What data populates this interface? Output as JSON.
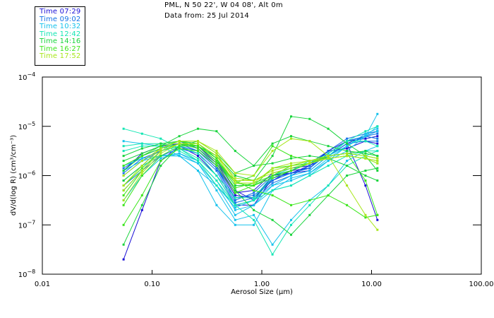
{
  "header": {
    "location": "PML, N 50 22', W 04 08', Alt 0m",
    "date_line": "Data from: 25 Jul 2014"
  },
  "legend": [
    {
      "label": "Time 07:29",
      "color": "#1a0fd6"
    },
    {
      "label": "Time 09:02",
      "color": "#1473e6"
    },
    {
      "label": "Time 10:32",
      "color": "#16c2ec"
    },
    {
      "label": "Time 12:42",
      "color": "#14e6b4"
    },
    {
      "label": "Time 14:16",
      "color": "#19d43c"
    },
    {
      "label": "Time 16:27",
      "color": "#3ce61c"
    },
    {
      "label": "Time 17:52",
      "color": "#a8e61a"
    }
  ],
  "chart_data": {
    "type": "line",
    "title": "PML, N 50 22', W 04 08', Alt 0m",
    "subtitle": "Data from: 25 Jul 2014",
    "xlabel": "Aerosol Size (µm)",
    "ylabel": "dV/d(log R) (cm³/cm⁻³)",
    "xscale": "log",
    "yscale": "log",
    "xlim": [
      0.01,
      100
    ],
    "ylim": [
      1e-08,
      0.0001
    ],
    "x_ticks": [
      {
        "value": 0.01,
        "label": "0.01"
      },
      {
        "value": 0.1,
        "label": "0.10"
      },
      {
        "value": 1,
        "label": "1.00"
      },
      {
        "value": 10,
        "label": "10.00"
      },
      {
        "value": 100,
        "label": "100.00"
      }
    ],
    "y_ticks": [
      {
        "value": 0.0001,
        "base": "10",
        "exp": "-4"
      },
      {
        "value": 1e-05,
        "base": "10",
        "exp": "-5"
      },
      {
        "value": 1e-06,
        "base": "10",
        "exp": "-6"
      },
      {
        "value": 1e-07,
        "base": "10",
        "exp": "-7"
      },
      {
        "value": 1e-08,
        "base": "10",
        "exp": "-8"
      }
    ],
    "legend_position": "top-left, outside",
    "x": [
      0.055,
      0.081,
      0.12,
      0.177,
      0.262,
      0.387,
      0.572,
      0.845,
      1.25,
      1.85,
      2.73,
      4.03,
      5.96,
      8.81,
      11.3
    ],
    "y_units_note": "series values are log10 of dV/d(log R)",
    "series": [
      {
        "name": "Time 07:29",
        "group": 0,
        "values": [
          -6.3,
          -5.9,
          -5.5,
          -5.35,
          -5.4,
          -5.7,
          -6.3,
          -6.5,
          -6.0,
          -5.95,
          -5.9,
          -5.6,
          -5.35,
          -5.2,
          -5.1
        ]
      },
      {
        "name": "Time 07:29",
        "group": 0,
        "values": [
          -6.1,
          -5.8,
          -5.45,
          -5.3,
          -5.45,
          -5.8,
          -6.4,
          -6.45,
          -6.1,
          -5.9,
          -5.85,
          -5.5,
          -5.3,
          -5.25,
          -5.2
        ]
      },
      {
        "name": "Time 07:29",
        "group": 0,
        "values": [
          -7.7,
          -6.7,
          -5.7,
          -5.4,
          -5.6,
          -6.0,
          -6.6,
          -6.6,
          -6.05,
          -5.95,
          -5.8,
          -5.6,
          -5.35,
          -6.2,
          -6.9
        ]
      },
      {
        "name": "Time 07:29",
        "group": 0,
        "values": [
          -5.9,
          -5.55,
          -5.4,
          -5.35,
          -5.4,
          -5.75,
          -6.35,
          -6.3,
          -5.95,
          -5.85,
          -5.8,
          -5.5,
          -5.45,
          -5.3,
          -5.35
        ]
      },
      {
        "name": "Time 09:02",
        "group": 1,
        "values": [
          -6.0,
          -5.7,
          -5.5,
          -5.35,
          -5.5,
          -5.85,
          -6.45,
          -6.4,
          -6.1,
          -5.95,
          -5.85,
          -5.55,
          -5.3,
          -5.2,
          -5.15
        ]
      },
      {
        "name": "Time 09:02",
        "group": 1,
        "values": [
          -5.85,
          -5.6,
          -5.45,
          -5.3,
          -5.45,
          -5.8,
          -6.5,
          -6.35,
          -6.0,
          -5.9,
          -5.75,
          -5.5,
          -5.25,
          -5.15,
          -5.1
        ]
      },
      {
        "name": "Time 09:02",
        "group": 1,
        "values": [
          -6.2,
          -5.9,
          -5.6,
          -5.45,
          -5.55,
          -5.9,
          -6.6,
          -6.5,
          -6.15,
          -6.0,
          -5.8,
          -5.6,
          -5.35,
          -5.3,
          -5.3
        ]
      },
      {
        "name": "Time 09:02",
        "group": 1,
        "values": [
          -5.95,
          -5.65,
          -5.5,
          -5.4,
          -5.5,
          -5.85,
          -6.55,
          -6.45,
          -6.05,
          -5.95,
          -5.85,
          -5.55,
          -5.3,
          -5.2,
          -5.25
        ]
      },
      {
        "name": "Time 10:32",
        "group": 2,
        "values": [
          -5.9,
          -5.7,
          -5.6,
          -5.55,
          -5.7,
          -6.1,
          -6.7,
          -6.6,
          -6.2,
          -6.0,
          -5.9,
          -5.6,
          -5.4,
          -5.2,
          -5.0
        ]
      },
      {
        "name": "Time 10:32",
        "group": 2,
        "values": [
          -5.8,
          -5.65,
          -5.6,
          -5.6,
          -5.9,
          -6.6,
          -7.0,
          -7.0,
          -6.3,
          -6.2,
          -6.0,
          -5.7,
          -5.4,
          -5.2,
          -5.1
        ]
      },
      {
        "name": "Time 10:32",
        "group": 2,
        "values": [
          -6.1,
          -5.8,
          -5.6,
          -5.6,
          -5.75,
          -6.2,
          -6.8,
          -6.6,
          -6.3,
          -6.05,
          -5.95,
          -5.65,
          -5.4,
          -5.15,
          -5.05
        ]
      },
      {
        "name": "Time 10:32",
        "group": 2,
        "values": [
          -5.3,
          -5.35,
          -5.4,
          -5.6,
          -5.9,
          -6.2,
          -6.65,
          -6.5,
          -6.2,
          -6.1,
          -5.95,
          -5.7,
          -5.5,
          -5.2,
          -4.75
        ]
      },
      {
        "name": "Time 10:32",
        "group": 2,
        "values": [
          -6.5,
          -6.0,
          -5.65,
          -5.55,
          -5.75,
          -6.3,
          -6.9,
          -6.8,
          -7.4,
          -6.9,
          -6.5,
          -6.2,
          -5.7,
          -5.5,
          -5.4
        ]
      },
      {
        "name": "Time 12:42",
        "group": 3,
        "values": [
          -5.05,
          -5.15,
          -5.25,
          -5.45,
          -5.7,
          -6.1,
          -6.6,
          -6.5,
          -6.05,
          -5.9,
          -5.7,
          -5.6,
          -5.3,
          -5.1,
          -5.0
        ]
      },
      {
        "name": "Time 12:42",
        "group": 3,
        "values": [
          -5.5,
          -5.4,
          -5.4,
          -5.5,
          -5.7,
          -6.2,
          -6.6,
          -6.9,
          -7.6,
          -7.0,
          -6.6,
          -6.2,
          -5.8,
          -5.6,
          -5.5
        ]
      },
      {
        "name": "Time 12:42",
        "group": 3,
        "values": [
          -6.3,
          -5.9,
          -5.5,
          -5.4,
          -5.55,
          -6.0,
          -6.6,
          -6.5,
          -6.3,
          -6.2,
          -6.0,
          -5.8,
          -5.6,
          -5.5,
          -5.5
        ]
      },
      {
        "name": "Time 12:42",
        "group": 3,
        "values": [
          -5.4,
          -5.35,
          -5.35,
          -5.45,
          -5.65,
          -6.0,
          -6.45,
          -6.45,
          -6.0,
          -5.85,
          -5.75,
          -5.55,
          -5.3,
          -5.3,
          -5.4
        ]
      },
      {
        "name": "Time 14:16",
        "group": 4,
        "values": [
          -5.9,
          -5.6,
          -5.45,
          -5.35,
          -5.4,
          -5.7,
          -6.2,
          -6.2,
          -6.0,
          -5.9,
          -5.75,
          -5.6,
          -5.55,
          -5.5,
          -5.6
        ]
      },
      {
        "name": "Time 14:16",
        "group": 4,
        "values": [
          -7.4,
          -6.6,
          -5.8,
          -5.4,
          -5.3,
          -5.55,
          -5.95,
          -5.8,
          -5.35,
          -5.2,
          -5.3,
          -5.4,
          -5.5,
          -5.55,
          -5.6
        ]
      },
      {
        "name": "Time 14:16",
        "group": 4,
        "values": [
          -5.7,
          -5.55,
          -5.4,
          -5.2,
          -5.05,
          -5.1,
          -5.5,
          -5.8,
          -5.75,
          -5.65,
          -5.6,
          -5.65,
          -5.8,
          -6.0,
          -6.1
        ]
      },
      {
        "name": "Time 14:16",
        "group": 4,
        "values": [
          -6.1,
          -5.8,
          -5.45,
          -5.3,
          -5.35,
          -5.65,
          -6.3,
          -6.7,
          -6.9,
          -7.2,
          -6.8,
          -6.4,
          -6.0,
          -5.9,
          -5.85
        ]
      },
      {
        "name": "Time 14:16",
        "group": 4,
        "values": [
          -5.6,
          -5.45,
          -5.35,
          -5.3,
          -5.4,
          -5.6,
          -6.0,
          -6.1,
          -5.6,
          -4.8,
          -4.85,
          -5.05,
          -5.35,
          -5.6,
          -5.9
        ]
      },
      {
        "name": "Time 16:27",
        "group": 5,
        "values": [
          -6.6,
          -6.0,
          -5.6,
          -5.4,
          -5.4,
          -5.7,
          -6.1,
          -6.3,
          -6.4,
          -6.6,
          -6.5,
          -6.4,
          -6.6,
          -6.85,
          -6.8
        ]
      },
      {
        "name": "Time 16:27",
        "group": 5,
        "values": [
          -7.0,
          -6.4,
          -5.7,
          -5.45,
          -5.5,
          -5.8,
          -6.35,
          -6.2,
          -5.85,
          -5.8,
          -5.75,
          -5.65,
          -5.6,
          -5.65,
          -5.75
        ]
      },
      {
        "name": "Time 16:27",
        "group": 5,
        "values": [
          -6.2,
          -5.85,
          -5.5,
          -5.35,
          -5.45,
          -5.75,
          -6.25,
          -6.15,
          -6.0,
          -5.8,
          -5.7,
          -5.65,
          -5.6,
          -5.65,
          -5.7
        ]
      },
      {
        "name": "Time 16:27",
        "group": 5,
        "values": [
          -5.8,
          -5.6,
          -5.4,
          -5.3,
          -5.4,
          -5.65,
          -6.15,
          -6.2,
          -6.05,
          -5.9,
          -5.75,
          -5.6,
          -5.55,
          -6.1,
          -6.8
        ]
      },
      {
        "name": "Time 16:27",
        "group": 5,
        "values": [
          -6.4,
          -5.9,
          -5.5,
          -5.35,
          -5.4,
          -5.7,
          -6.15,
          -6.0,
          -5.4,
          -5.6,
          -5.7,
          -5.6,
          -5.55,
          -5.6,
          -5.65
        ]
      },
      {
        "name": "Time 17:52",
        "group": 6,
        "values": [
          -6.5,
          -5.95,
          -5.55,
          -5.35,
          -5.35,
          -5.6,
          -6.05,
          -6.1,
          -5.95,
          -5.85,
          -5.75,
          -5.65,
          -5.6,
          -5.65,
          -5.7
        ]
      },
      {
        "name": "Time 17:52",
        "group": 6,
        "values": [
          -6.2,
          -5.8,
          -5.45,
          -5.3,
          -5.3,
          -5.5,
          -5.95,
          -6.0,
          -5.5,
          -5.25,
          -5.3,
          -5.6,
          -6.2,
          -6.8,
          -7.1
        ]
      },
      {
        "name": "Time 17:52",
        "group": 6,
        "values": [
          -6.0,
          -5.7,
          -5.45,
          -5.3,
          -5.3,
          -5.55,
          -6.1,
          -6.1,
          -5.9,
          -5.8,
          -5.7,
          -5.65,
          -5.6,
          -5.65,
          -5.75
        ]
      },
      {
        "name": "Time 17:52",
        "group": 6,
        "values": [
          -6.3,
          -5.9,
          -5.5,
          -5.35,
          -5.35,
          -5.6,
          -6.15,
          -6.15,
          -5.85,
          -5.75,
          -5.7,
          -5.6,
          -5.55,
          -5.6,
          -5.65
        ]
      }
    ]
  }
}
